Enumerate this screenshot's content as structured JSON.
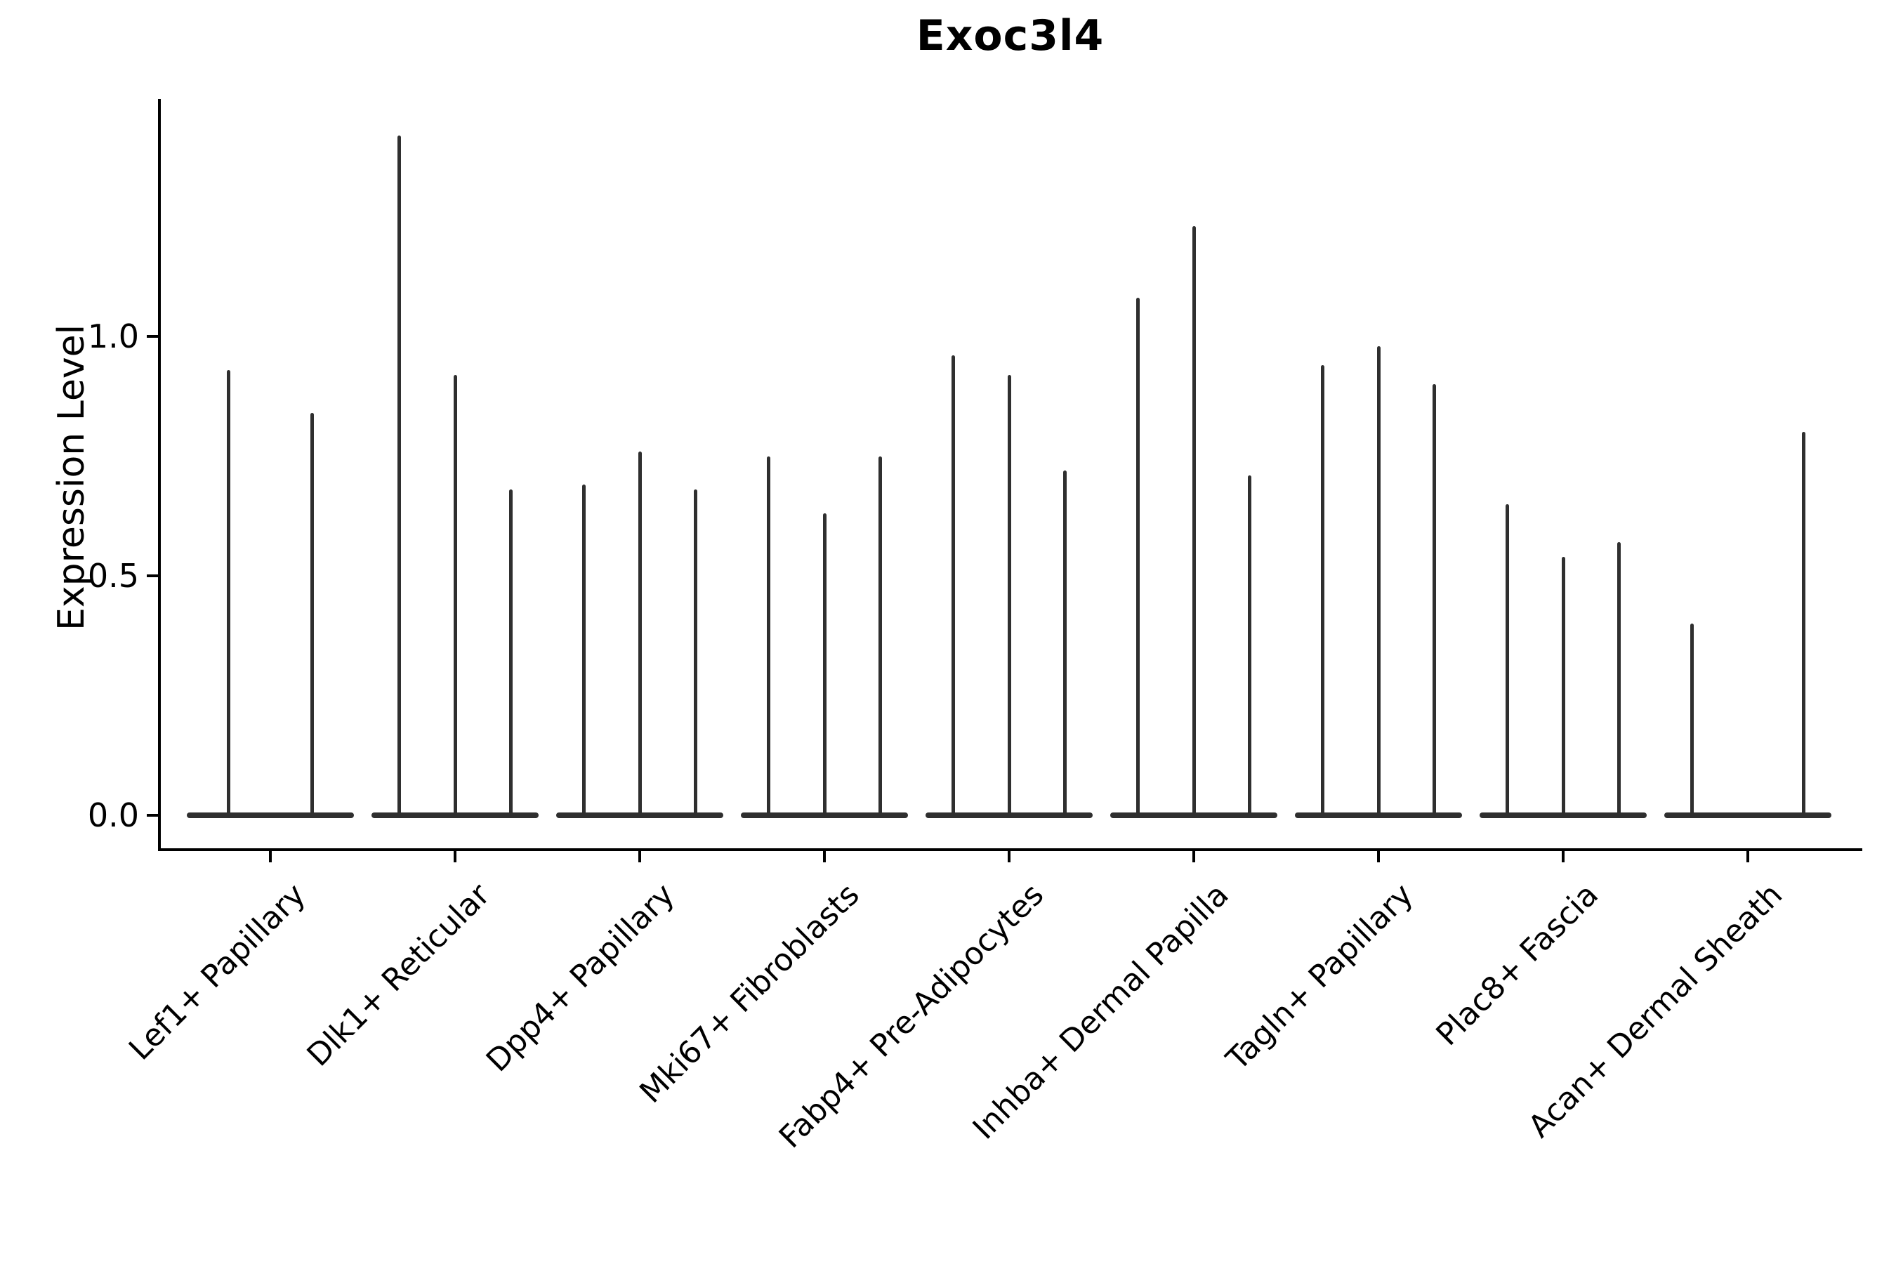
{
  "chart_data": {
    "type": "violin",
    "title": "Exoc3l4",
    "ylabel": "Expression Level",
    "xlabel": "",
    "ylim": [
      -0.07,
      1.5
    ],
    "grid": false,
    "legend_position": "none",
    "yticks": [
      {
        "value": 0.0,
        "label": "0.0"
      },
      {
        "value": 0.5,
        "label": "0.5"
      },
      {
        "value": 1.0,
        "label": "1.0"
      }
    ],
    "categories": [
      {
        "label": "Lef1+ Papillary",
        "violin_max_values": [
          0.93,
          0.84
        ]
      },
      {
        "label": "Dlk1+ Reticular",
        "violin_max_values": [
          1.42,
          0.92,
          0.68
        ]
      },
      {
        "label": "Dpp4+ Papillary",
        "violin_max_values": [
          0.69,
          0.76,
          0.68
        ]
      },
      {
        "label": "Mki67+ Fibroblasts",
        "violin_max_values": [
          0.75,
          0.63,
          0.75
        ]
      },
      {
        "label": "Fabp4+ Pre-Adipocytes",
        "violin_max_values": [
          0.96,
          0.92,
          0.72
        ]
      },
      {
        "label": "Inhba+ Dermal Papilla",
        "violin_max_values": [
          1.08,
          1.23,
          0.71
        ]
      },
      {
        "label": "Tagln+ Papillary",
        "violin_max_values": [
          0.94,
          0.98,
          0.9
        ]
      },
      {
        "label": "Plac8+ Fascia",
        "violin_max_values": [
          0.65,
          0.54,
          0.57
        ]
      },
      {
        "label": "Acan+ Dermal Sheath",
        "violin_max_values": [
          0.4,
          0.0,
          0.8
        ]
      }
    ]
  },
  "colors": {
    "ink": "#000000",
    "violin": "#2f2f2f",
    "background": "#ffffff"
  }
}
